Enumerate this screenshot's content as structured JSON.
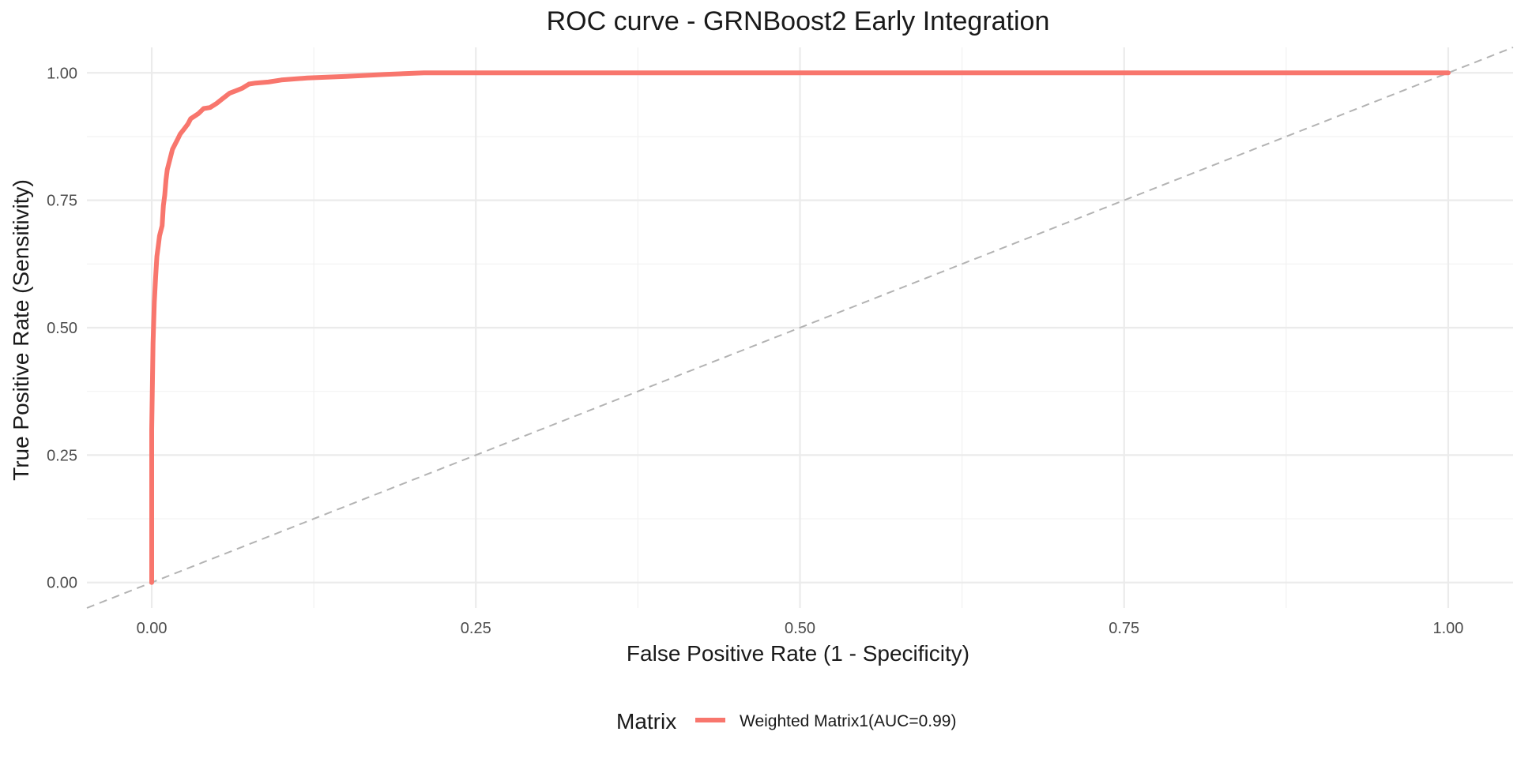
{
  "chart_data": {
    "type": "line",
    "title": "ROC curve - GRNBoost2 Early Integration",
    "xlabel": "False Positive Rate (1 - Specificity)",
    "ylabel": "True Positive Rate (Sensitivity)",
    "xlim": [
      -0.05,
      1.05
    ],
    "ylim": [
      -0.05,
      1.05
    ],
    "x_ticks": [
      0.0,
      0.25,
      0.5,
      0.75,
      1.0
    ],
    "x_tick_labels": [
      "0.00",
      "0.25",
      "0.50",
      "0.75",
      "1.00"
    ],
    "y_ticks": [
      0.0,
      0.25,
      0.5,
      0.75,
      1.0
    ],
    "y_tick_labels": [
      "0.00",
      "0.25",
      "0.50",
      "0.75",
      "1.00"
    ],
    "grid": true,
    "legend": {
      "title": "Matrix",
      "placement": "bottom"
    },
    "reference_line": {
      "style": "dashed",
      "color": "#b3b3b3",
      "from": [
        -0.05,
        -0.05
      ],
      "to": [
        1.05,
        1.05
      ]
    },
    "series": [
      {
        "name": "Weighted Matrix1(AUC=0.99)",
        "color": "#F8766D",
        "x": [
          0.0,
          0.0,
          0.001,
          0.002,
          0.003,
          0.004,
          0.005,
          0.006,
          0.008,
          0.009,
          0.01,
          0.011,
          0.012,
          0.014,
          0.016,
          0.018,
          0.02,
          0.022,
          0.025,
          0.028,
          0.03,
          0.033,
          0.036,
          0.04,
          0.045,
          0.05,
          0.055,
          0.06,
          0.065,
          0.07,
          0.075,
          0.08,
          0.09,
          0.1,
          0.12,
          0.15,
          0.18,
          0.21,
          0.5,
          1.0
        ],
        "y": [
          0.0,
          0.3,
          0.47,
          0.55,
          0.6,
          0.64,
          0.66,
          0.68,
          0.7,
          0.74,
          0.76,
          0.79,
          0.81,
          0.83,
          0.85,
          0.86,
          0.87,
          0.88,
          0.89,
          0.9,
          0.91,
          0.915,
          0.92,
          0.93,
          0.932,
          0.94,
          0.95,
          0.96,
          0.965,
          0.97,
          0.978,
          0.98,
          0.982,
          0.986,
          0.99,
          0.993,
          0.997,
          1.0,
          1.0,
          1.0
        ]
      }
    ]
  }
}
